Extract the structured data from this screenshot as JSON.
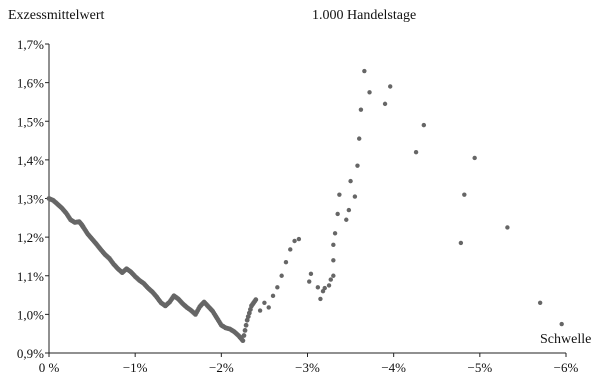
{
  "chart_data": {
    "type": "scatter",
    "title": "1.000 Handelstage",
    "ylabel": "Exzessmittelwert",
    "xlabel": "Schwelle",
    "xlim": [
      0,
      -6
    ],
    "ylim": [
      0.9,
      1.7
    ],
    "x_ticks": [
      0,
      -1,
      -2,
      -3,
      -4,
      -5,
      -6
    ],
    "x_tick_labels": [
      "0 %",
      "−1%",
      "−2%",
      "−3%",
      "−4%",
      "−5%",
      "−6%"
    ],
    "y_ticks": [
      0.9,
      1.0,
      1.1,
      1.2,
      1.3,
      1.4,
      1.5,
      1.6,
      1.7
    ],
    "y_tick_labels": [
      "0,9%",
      "1,0%",
      "1,1%",
      "1,2%",
      "1,3%",
      "1,4%",
      "1,5%",
      "1,6%",
      "1,7%"
    ],
    "grid": false,
    "colors": {
      "points": "#666666",
      "axis": "#222222"
    },
    "dense_band": [
      [
        0.0,
        1.3
      ],
      [
        0.05,
        1.295
      ],
      [
        0.1,
        1.285
      ],
      [
        0.15,
        1.275
      ],
      [
        0.2,
        1.262
      ],
      [
        0.25,
        1.245
      ],
      [
        0.3,
        1.238
      ],
      [
        0.35,
        1.24
      ],
      [
        0.38,
        1.232
      ],
      [
        0.4,
        1.225
      ],
      [
        0.45,
        1.208
      ],
      [
        0.5,
        1.195
      ],
      [
        0.55,
        1.182
      ],
      [
        0.6,
        1.168
      ],
      [
        0.65,
        1.155
      ],
      [
        0.7,
        1.145
      ],
      [
        0.75,
        1.13
      ],
      [
        0.8,
        1.118
      ],
      [
        0.85,
        1.108
      ],
      [
        0.9,
        1.118
      ],
      [
        0.95,
        1.11
      ],
      [
        1.0,
        1.098
      ],
      [
        1.05,
        1.088
      ],
      [
        1.1,
        1.08
      ],
      [
        1.15,
        1.068
      ],
      [
        1.2,
        1.058
      ],
      [
        1.25,
        1.045
      ],
      [
        1.3,
        1.03
      ],
      [
        1.35,
        1.022
      ],
      [
        1.4,
        1.032
      ],
      [
        1.45,
        1.048
      ],
      [
        1.5,
        1.04
      ],
      [
        1.55,
        1.028
      ],
      [
        1.6,
        1.018
      ],
      [
        1.65,
        1.01
      ],
      [
        1.7,
        1.0
      ],
      [
        1.75,
        1.02
      ],
      [
        1.8,
        1.032
      ],
      [
        1.85,
        1.02
      ],
      [
        1.9,
        1.008
      ],
      [
        1.95,
        0.99
      ],
      [
        2.0,
        0.972
      ],
      [
        2.05,
        0.965
      ],
      [
        2.1,
        0.962
      ],
      [
        2.15,
        0.955
      ],
      [
        2.2,
        0.945
      ],
      [
        2.25,
        0.932
      ],
      [
        2.3,
        0.985
      ],
      [
        2.35,
        1.022
      ],
      [
        2.4,
        1.038
      ]
    ],
    "sparse_points": [
      [
        2.45,
        1.01
      ],
      [
        2.5,
        1.03
      ],
      [
        2.55,
        1.018
      ],
      [
        2.6,
        1.048
      ],
      [
        2.65,
        1.07
      ],
      [
        2.7,
        1.1
      ],
      [
        2.75,
        1.135
      ],
      [
        2.8,
        1.168
      ],
      [
        2.85,
        1.19
      ],
      [
        2.9,
        1.195
      ],
      [
        3.02,
        1.085
      ],
      [
        3.04,
        1.105
      ],
      [
        3.12,
        1.07
      ],
      [
        3.15,
        1.04
      ],
      [
        3.18,
        1.06
      ],
      [
        3.2,
        1.068
      ],
      [
        3.25,
        1.075
      ],
      [
        3.27,
        1.09
      ],
      [
        3.3,
        1.1
      ],
      [
        3.3,
        1.14
      ],
      [
        3.3,
        1.18
      ],
      [
        3.32,
        1.21
      ],
      [
        3.35,
        1.26
      ],
      [
        3.37,
        1.31
      ],
      [
        3.45,
        1.245
      ],
      [
        3.48,
        1.27
      ],
      [
        3.5,
        1.345
      ],
      [
        3.55,
        1.305
      ],
      [
        3.58,
        1.385
      ],
      [
        3.6,
        1.455
      ],
      [
        3.62,
        1.53
      ],
      [
        3.66,
        1.63
      ],
      [
        3.72,
        1.575
      ],
      [
        3.9,
        1.545
      ],
      [
        3.96,
        1.59
      ],
      [
        4.26,
        1.42
      ],
      [
        4.35,
        1.49
      ],
      [
        4.78,
        1.185
      ],
      [
        4.82,
        1.31
      ],
      [
        4.94,
        1.405
      ],
      [
        5.32,
        1.225
      ],
      [
        5.7,
        1.03
      ],
      [
        5.95,
        0.975
      ]
    ]
  }
}
